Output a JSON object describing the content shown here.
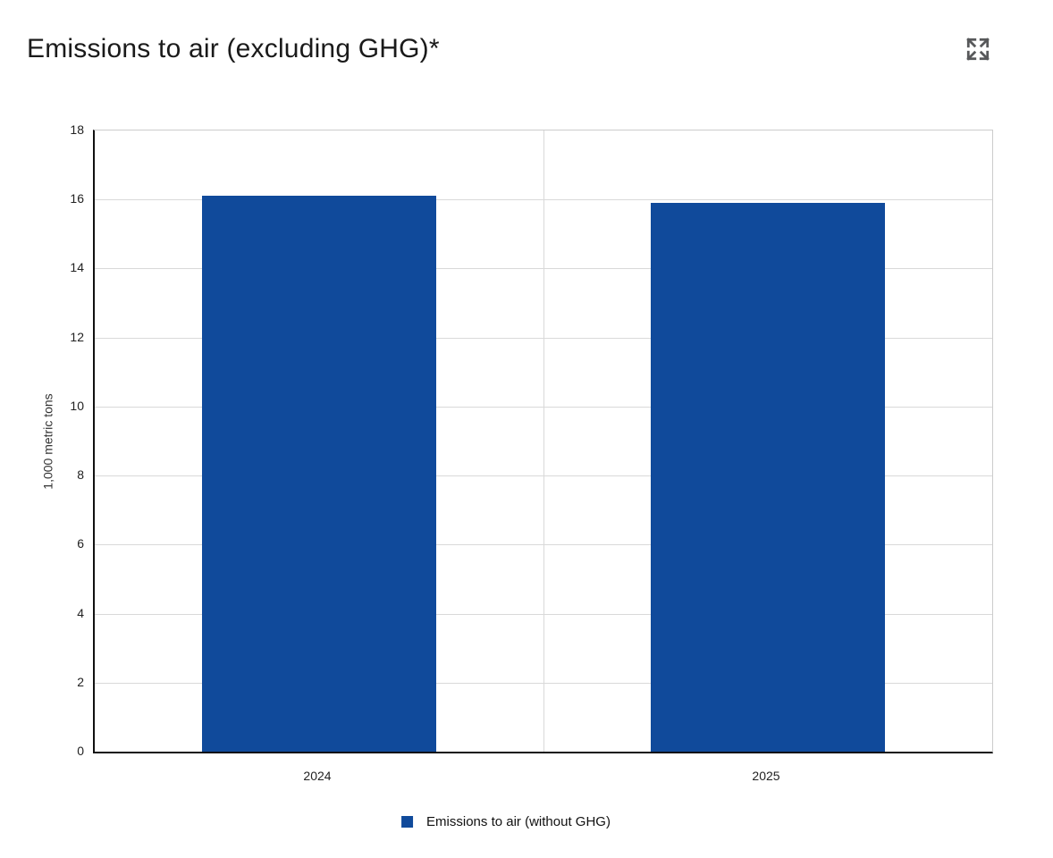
{
  "page": {
    "title": "Emissions to air (excluding GHG)*"
  },
  "toolbar": {
    "expand_icon": "expand-arrows-icon"
  },
  "chart_data": {
    "type": "bar",
    "title": "Emissions to air (excluding GHG)*",
    "categories": [
      "2024",
      "2025"
    ],
    "series": [
      {
        "name": "Emissions to air (without GHG)",
        "values": [
          16.1,
          15.9
        ],
        "color": "#104A9B"
      }
    ],
    "xlabel": "",
    "ylabel": "1,000 metric tons",
    "ylim": [
      0,
      18
    ],
    "yticks": [
      0,
      2,
      4,
      6,
      8,
      10,
      12,
      14,
      16,
      18
    ],
    "grid": true,
    "legend_position": "bottom"
  },
  "legend": {
    "items": [
      {
        "label": "Emissions to air (without GHG)",
        "color": "#104A9B"
      }
    ]
  },
  "colors": {
    "bar": "#104A9B",
    "gridline": "#d9d9d9",
    "axis": "#111111",
    "plot_border": "#cccccc",
    "icon": "#58595b",
    "title_text": "#1a1a1a",
    "tick_text": "#222222"
  }
}
